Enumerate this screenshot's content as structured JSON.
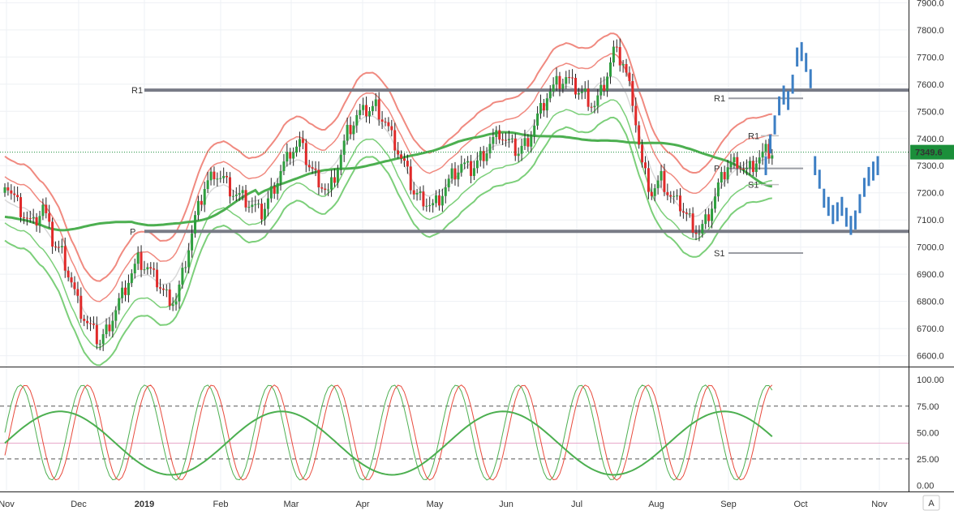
{
  "colors": {
    "up": "#26a69a",
    "up_candle": "#2e9e3e",
    "down_candle": "#e02a2a",
    "upper_band": "#f08a80",
    "lower_band": "#7ccf7a",
    "ma_long": "#4caf50",
    "ma_long_red": "#e85a50",
    "pivot_line": "#787b86",
    "projection": "#3d7fc4",
    "price_label_bg": "#1b8f3a",
    "stoch_k": "#4caf50",
    "stoch_d": "#e84a3c"
  },
  "chart_data": [
    {
      "type": "candlestick",
      "x_ticks": [
        "Nov",
        "Dec",
        "2019",
        "Feb",
        "Mar",
        "Apr",
        "May",
        "Jun",
        "Jul",
        "Aug",
        "Sep",
        "Oct",
        "Nov"
      ],
      "y_ticks": [
        "6600.0",
        "6700.0",
        "6800.0",
        "6900.0",
        "7000.0",
        "7100.0",
        "7200.0",
        "7300.0",
        "7400.0",
        "7500.0",
        "7600.0",
        "7700.0",
        "7800.0",
        "7900.0"
      ],
      "ylim": [
        6560,
        7910
      ],
      "current_price": "7349.6",
      "pivot_labels": {
        "r1_left": "R1",
        "p_left": "P",
        "r1_right": "R1",
        "p_right": "P",
        "s1_right": "S1",
        "s1_right_low": "S1"
      },
      "levels": {
        "r1_main": 7578,
        "p_main": 7058,
        "r1_sep": 7548,
        "r1b_sep": 7410,
        "p_sep": 7290,
        "s1_sep": 7230,
        "s1b_sep": 6978
      },
      "close_approx": [
        7250,
        7180,
        7120,
        7080,
        7150,
        7020,
        6980,
        6870,
        6760,
        6700,
        6650,
        6720,
        6800,
        6880,
        6950,
        6920,
        6870,
        6820,
        6800,
        6950,
        7100,
        7220,
        7280,
        7250,
        7200,
        7180,
        7150,
        7120,
        7200,
        7280,
        7350,
        7380,
        7300,
        7250,
        7200,
        7300,
        7420,
        7480,
        7500,
        7520,
        7460,
        7380,
        7300,
        7200,
        7180,
        7150,
        7200,
        7260,
        7300,
        7280,
        7330,
        7380,
        7420,
        7380,
        7350,
        7400,
        7480,
        7560,
        7600,
        7620,
        7580,
        7560,
        7520,
        7600,
        7720,
        7680,
        7550,
        7300,
        7200,
        7250,
        7180,
        7150,
        7100,
        7050,
        7120,
        7220,
        7300,
        7320,
        7280,
        7320,
        7350
      ],
      "projection": [
        7300,
        7380,
        7450,
        7520,
        7560,
        7540,
        7600,
        7700,
        7720,
        7680,
        7620,
        7300,
        7250,
        7180,
        7150,
        7120,
        7130,
        7150,
        7110,
        7080,
        7100,
        7160,
        7220,
        7260,
        7280,
        7300
      ]
    },
    {
      "type": "line",
      "y_ticks": [
        "0.00",
        "25.00",
        "50.00",
        "75.00",
        "100.00"
      ],
      "ylim": [
        -5,
        104
      ],
      "levels": [
        25,
        40,
        75
      ]
    }
  ],
  "corner_label": "A"
}
